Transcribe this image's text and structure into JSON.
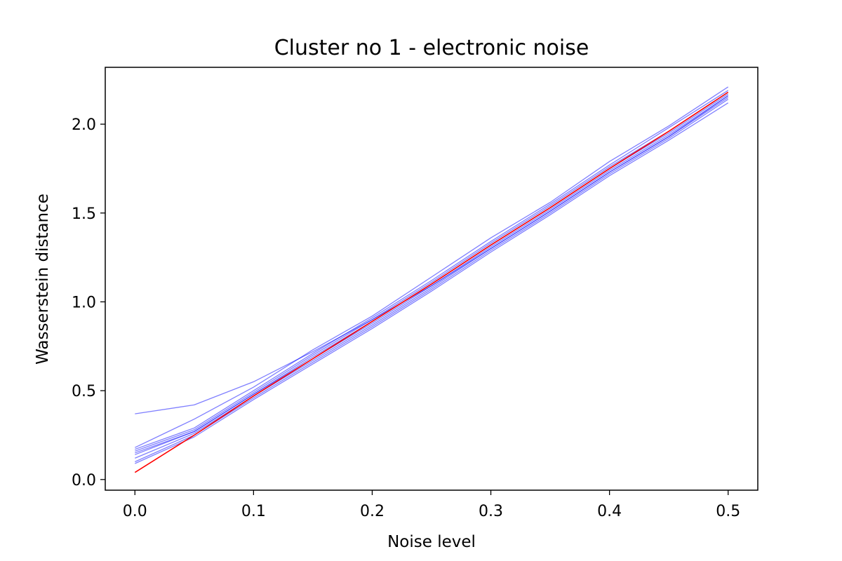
{
  "chart_data": {
    "type": "line",
    "title": "Cluster no 1 - electronic noise",
    "xlabel": "Noise level",
    "ylabel": "Wasserstein distance",
    "xlim": [
      -0.025,
      0.525
    ],
    "ylim": [
      -0.06,
      2.32
    ],
    "xticks": [
      0.0,
      0.1,
      0.2,
      0.3,
      0.4,
      0.5
    ],
    "xtick_labels": [
      "0.0",
      "0.1",
      "0.2",
      "0.3",
      "0.4",
      "0.5"
    ],
    "yticks": [
      0.0,
      0.5,
      1.0,
      1.5,
      2.0
    ],
    "ytick_labels": [
      "0.0",
      "0.5",
      "1.0",
      "1.5",
      "2.0"
    ],
    "grid": false,
    "x": [
      0.0,
      0.05,
      0.1,
      0.15,
      0.2,
      0.25,
      0.3,
      0.35,
      0.4,
      0.45,
      0.5
    ],
    "series": [
      {
        "color": "#0000ff",
        "opacity": 0.5,
        "values": [
          0.37,
          0.42,
          0.55,
          0.72,
          0.9,
          1.09,
          1.3,
          1.51,
          1.73,
          1.93,
          2.16
        ]
      },
      {
        "color": "#0000ff",
        "opacity": 0.5,
        "values": [
          0.18,
          0.34,
          0.52,
          0.73,
          0.92,
          1.14,
          1.36,
          1.56,
          1.79,
          1.99,
          2.21
        ]
      },
      {
        "color": "#0000ff",
        "opacity": 0.5,
        "values": [
          0.17,
          0.29,
          0.5,
          0.71,
          0.91,
          1.12,
          1.34,
          1.55,
          1.77,
          1.98,
          2.19
        ]
      },
      {
        "color": "#0000ff",
        "opacity": 0.5,
        "values": [
          0.16,
          0.28,
          0.49,
          0.7,
          0.9,
          1.11,
          1.33,
          1.54,
          1.76,
          1.96,
          2.18
        ]
      },
      {
        "color": "#0000ff",
        "opacity": 0.5,
        "values": [
          0.15,
          0.27,
          0.48,
          0.69,
          0.89,
          1.1,
          1.32,
          1.53,
          1.75,
          1.95,
          2.17
        ]
      },
      {
        "color": "#0000ff",
        "opacity": 0.5,
        "values": [
          0.14,
          0.27,
          0.48,
          0.68,
          0.88,
          1.09,
          1.31,
          1.52,
          1.74,
          1.94,
          2.16
        ]
      },
      {
        "color": "#0000ff",
        "opacity": 0.5,
        "values": [
          0.12,
          0.26,
          0.47,
          0.67,
          0.87,
          1.08,
          1.3,
          1.51,
          1.73,
          1.93,
          2.15
        ]
      },
      {
        "color": "#0000ff",
        "opacity": 0.5,
        "values": [
          0.1,
          0.25,
          0.46,
          0.66,
          0.86,
          1.07,
          1.29,
          1.5,
          1.72,
          1.92,
          2.14
        ]
      },
      {
        "color": "#0000ff",
        "opacity": 0.5,
        "values": [
          0.09,
          0.24,
          0.45,
          0.65,
          0.85,
          1.06,
          1.28,
          1.49,
          1.71,
          1.91,
          2.12
        ]
      },
      {
        "color": "#ff0000",
        "opacity": 1.0,
        "values": [
          0.04,
          0.25,
          0.47,
          0.68,
          0.89,
          1.1,
          1.32,
          1.53,
          1.75,
          1.96,
          2.18
        ]
      }
    ]
  }
}
